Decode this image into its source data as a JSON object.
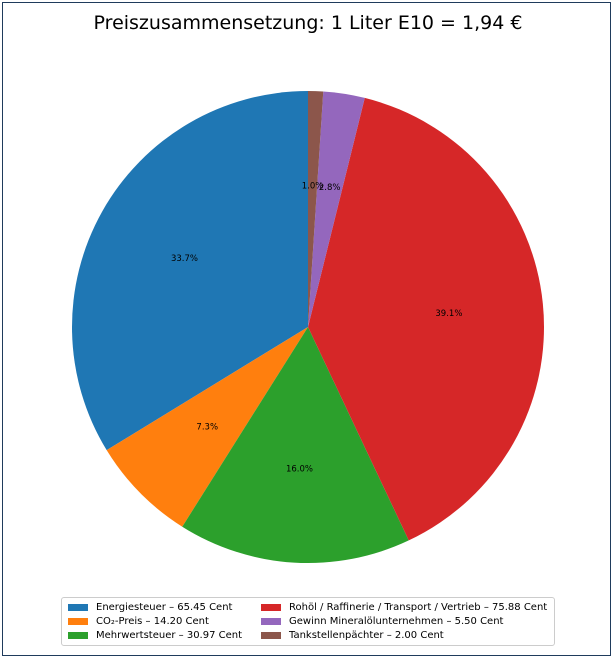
{
  "chart_data": {
    "type": "pie",
    "title": "Preiszusammensetzung: 1 Liter E10 = 1,94 €",
    "start_angle_deg": 90,
    "direction": "counterclockwise",
    "slices": [
      {
        "label": "Energiesteuer – 65.45 Cent",
        "value": 65.45,
        "pct_label": "33.7%",
        "color": "#1f77b4"
      },
      {
        "label": "CO₂-Preis – 14.20 Cent",
        "value": 14.2,
        "pct_label": "7.3%",
        "color": "#ff7f0e"
      },
      {
        "label": "Mehrwertsteuer – 30.97 Cent",
        "value": 30.97,
        "pct_label": "16.0%",
        "color": "#2ca02c"
      },
      {
        "label": "Rohöl / Raffinerie / Transport / Vertrieb – 75.88 Cent",
        "value": 75.88,
        "pct_label": "39.1%",
        "color": "#d62728"
      },
      {
        "label": "Gewinn Mineralölunternehmen – 5.50 Cent",
        "value": 5.5,
        "pct_label": "2.8%",
        "color": "#9467bd"
      },
      {
        "label": "Tankstellenpächter – 2.00 Cent",
        "value": 2.0,
        "pct_label": "1.0%",
        "color": "#8c564b"
      }
    ],
    "legend_position": "bottom-center"
  }
}
